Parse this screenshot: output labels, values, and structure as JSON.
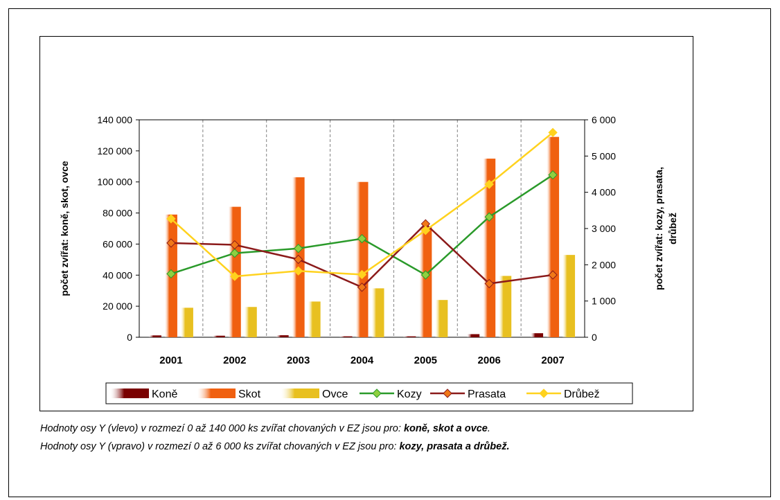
{
  "chart_data": {
    "type": "bar",
    "categories": [
      "2001",
      "2002",
      "2003",
      "2004",
      "2005",
      "2006",
      "2007"
    ],
    "bar_series": [
      {
        "name": "Koně",
        "axis": "left",
        "color": "#7a0000",
        "values": [
          1200,
          1000,
          1300,
          600,
          600,
          2000,
          2600
        ]
      },
      {
        "name": "Skot",
        "axis": "left",
        "color": "#f06010",
        "values": [
          79000,
          84000,
          103000,
          100000,
          71000,
          115000,
          129000
        ]
      },
      {
        "name": "Ovce",
        "axis": "left",
        "color": "#e8c020",
        "values": [
          19000,
          19500,
          23000,
          31500,
          24000,
          39500,
          53000
        ]
      }
    ],
    "line_series": [
      {
        "name": "Kozy",
        "axis": "right",
        "color": "#2a9a2a",
        "marker_color": "#8fd040",
        "values": [
          1750,
          2320,
          2450,
          2720,
          1720,
          3320,
          4480
        ]
      },
      {
        "name": "Prasata",
        "axis": "right",
        "color": "#8b1a1a",
        "marker_color": "#f07818",
        "values": [
          2600,
          2550,
          2150,
          1380,
          3130,
          1480,
          1720
        ]
      },
      {
        "name": "Drůbež",
        "axis": "right",
        "color": "#ffd21e",
        "marker_color": "#ffd21e",
        "values": [
          3270,
          1680,
          1830,
          1730,
          2950,
          4220,
          5650
        ]
      }
    ],
    "left_axis": {
      "label": "počet zvířat: koně, skot, ovce",
      "ylim": [
        0,
        140000
      ],
      "ticks": [
        0,
        20000,
        40000,
        60000,
        80000,
        100000,
        120000,
        140000
      ],
      "tick_labels": [
        "0",
        "20 000",
        "40 000",
        "60 000",
        "80 000",
        "100 000",
        "120 000",
        "140 000"
      ]
    },
    "right_axis": {
      "label_line1": "počet zvířat: kozy, prasata,",
      "label_line2": "drůbež",
      "ylim": [
        0,
        6000
      ],
      "ticks": [
        0,
        1000,
        2000,
        3000,
        4000,
        5000,
        6000
      ],
      "tick_labels": [
        "0",
        "1 000",
        "2 000",
        "3 000",
        "4 000",
        "5 000",
        "6 000"
      ]
    },
    "grid": "vertical dashed between categories",
    "legend_position": "bottom"
  },
  "notes": [
    {
      "prefix": "Hodnoty osy Y (vlevo) v rozmezí 0 až 140 000 ks zvířat chovaných v EZ jsou pro: ",
      "bold": "koně, skot a ovce",
      "suffix": "."
    },
    {
      "prefix": "Hodnoty osy Y (vpravo) v rozmezí 0 až 6 000 ks zvířat chovaných v EZ jsou pro: ",
      "bold": "kozy, prasata a drůbež.",
      "suffix": ""
    }
  ]
}
